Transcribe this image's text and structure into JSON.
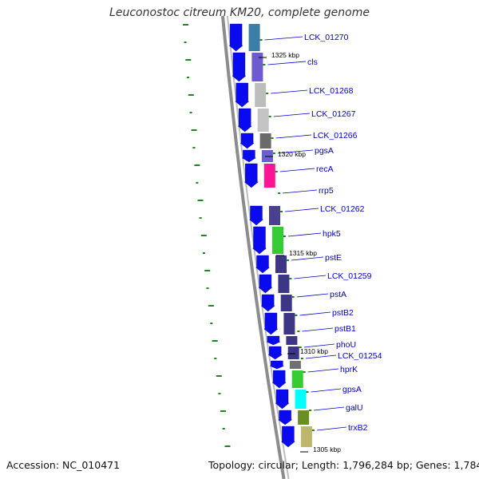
{
  "title": "Leuconostoc citreum KM20, complete genome",
  "footer": {
    "accession": "Accession: NC_010471",
    "summary": "Topology: circular; Length: 1,796,284 bp; Genes: 1,784"
  },
  "ticks": [
    {
      "label": "1325 kbp",
      "kbp": 1325
    },
    {
      "label": "1320 kbp",
      "kbp": 1320
    },
    {
      "label": "1315 kbp",
      "kbp": 1315
    },
    {
      "label": "1310 kbp",
      "kbp": 1310
    },
    {
      "label": "1305 kbp",
      "kbp": 1305
    }
  ],
  "genes": [
    {
      "label": "LCK_01270",
      "color": "#3b7fa6"
    },
    {
      "label": "cls",
      "color": "#6e5bd0"
    },
    {
      "label": "LCK_01268",
      "color": "#bdbdbd"
    },
    {
      "label": "LCK_01267",
      "color": "#c4c4c4"
    },
    {
      "label": "LCK_01266",
      "color": "#6a6a6a"
    },
    {
      "label": "pgsA",
      "color": "#6b5fd0"
    },
    {
      "label": "recA",
      "color": "#ff1493"
    },
    {
      "label": "rrp5",
      "color": ""
    },
    {
      "label": "LCK_01262",
      "color": "#4b3f8f"
    },
    {
      "label": "hpk5",
      "color": "#33cc33"
    },
    {
      "label": "pstE",
      "color": "#3d3585"
    },
    {
      "label": "LCK_01259",
      "color": "#3d3585"
    },
    {
      "label": "pstA",
      "color": "#3d3585"
    },
    {
      "label": "pstB2",
      "color": "#3d3585"
    },
    {
      "label": "pstB1",
      "color": "#3d3585"
    },
    {
      "label": "phoU",
      "color": "#3d3585"
    },
    {
      "label": "LCK_01254",
      "color": "#707070"
    },
    {
      "label": "hprK",
      "color": "#33cc33"
    },
    {
      "label": "gpsA",
      "color": "#00ffff"
    },
    {
      "label": "galU",
      "color": "#6b8e23"
    },
    {
      "label": "trxB2",
      "color": "#bdb76b"
    }
  ],
  "colors": {
    "arrow": "#0a0af0",
    "label": "#0000cc",
    "tick_label": "#000000",
    "gc_marks": "#1a8a1a",
    "backbone": "#8c8c8c"
  }
}
